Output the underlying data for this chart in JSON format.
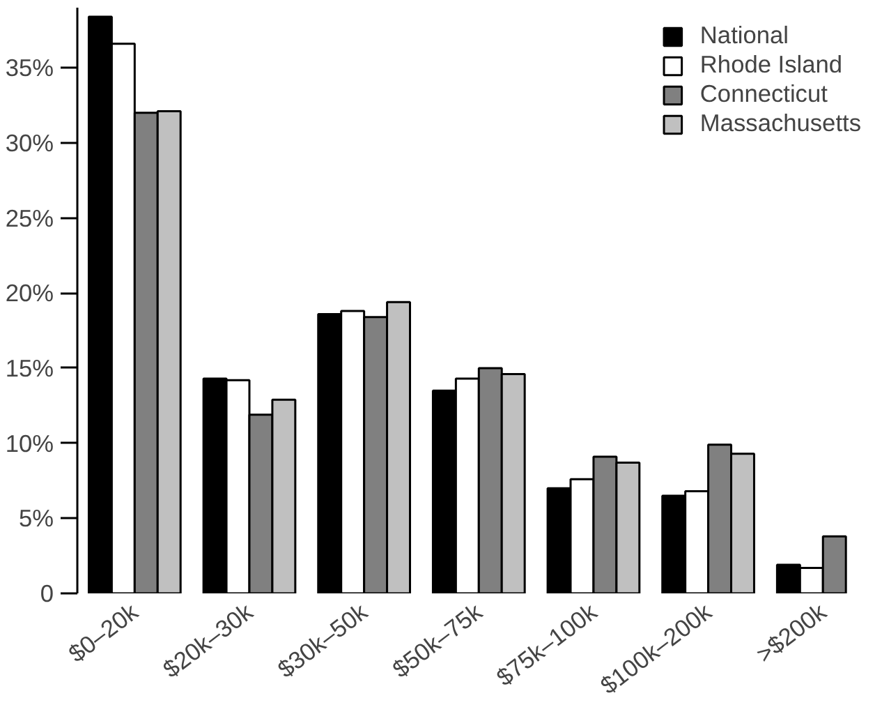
{
  "chart_data": {
    "type": "bar",
    "categories": [
      "$0–20k",
      "$20k–30k",
      "$30k–50k",
      "$50k–75k",
      "$75k–100k",
      "$100k–200k",
      ">$200k"
    ],
    "series": [
      {
        "name": "National",
        "color": "#000000",
        "values": [
          38.4,
          14.3,
          18.6,
          13.5,
          7.0,
          6.5,
          1.9
        ]
      },
      {
        "name": "Rhode Island",
        "color": "#ffffff",
        "values": [
          36.6,
          14.2,
          18.8,
          14.3,
          7.6,
          6.8,
          1.7
        ]
      },
      {
        "name": "Connecticut",
        "color": "#808080",
        "values": [
          32.0,
          11.9,
          18.4,
          15.0,
          9.1,
          9.9,
          3.8
        ]
      },
      {
        "name": "Massachusetts",
        "color": "#c0c0c0",
        "values": [
          32.1,
          12.9,
          19.4,
          14.6,
          8.7,
          9.3,
          null
        ]
      }
    ],
    "ylim": [
      0,
      39
    ],
    "yticks": [
      0,
      {
        "value": 5,
        "label": "5%"
      },
      {
        "value": 10,
        "label": "10%"
      },
      {
        "value": 15,
        "label": "15%"
      },
      {
        "value": 20,
        "label": "20%"
      },
      {
        "value": 25,
        "label": "25%"
      },
      {
        "value": 30,
        "label": "30%"
      },
      {
        "value": 35,
        "label": "35%"
      }
    ],
    "legend": "top right",
    "grid": false
  }
}
